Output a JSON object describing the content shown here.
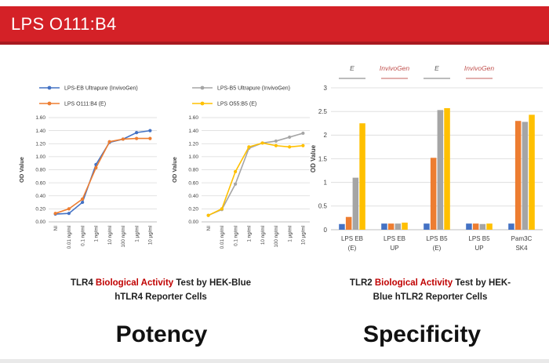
{
  "header": {
    "title": "LPS O111:B4"
  },
  "section_labels": {
    "left": "Potency",
    "right": "Specificity"
  },
  "captions": {
    "left": {
      "line1_pre": "TLR4 ",
      "line1_red": "Biological Activity",
      "line1_post": " Test by HEK-Blue",
      "line2": "hTLR4 Reporter Cells"
    },
    "right": {
      "line1_pre": "TLR2 ",
      "line1_red": "Biological Activity",
      "line1_post": " Test by HEK-",
      "line2": "Blue hTLR2 Reporter Cells"
    }
  },
  "colors": {
    "header_bg": "#d42127",
    "header_border": "#a81a20",
    "caption_red": "#c00000",
    "grid": "#d9d9d9",
    "axis": "#bfbfbf",
    "tick_text": "#404040"
  },
  "chart_data": [
    {
      "type": "line",
      "name": "tlr4-potency-line-chart-eb",
      "ylabel": "OD Value",
      "ylim": [
        0,
        1.6
      ],
      "ytick_step": 0.2,
      "grid": true,
      "legend_position": "top",
      "categories": [
        "NI",
        "0.01 ng/ml",
        "0.1 ng/ml",
        "1 ng/ml",
        "10 ng/ml",
        "100 ng/ml",
        "1 µg/ml",
        "10 µg/ml"
      ],
      "series": [
        {
          "name": "LPS-EB Ultrapure (InvivoGen)",
          "color": "#4472c4",
          "values": [
            0.12,
            0.13,
            0.3,
            0.88,
            1.22,
            1.27,
            1.37,
            1.4
          ]
        },
        {
          "name": "LPS O111:B4 (E)",
          "color": "#ed7d31",
          "values": [
            0.13,
            0.2,
            0.35,
            0.83,
            1.23,
            1.27,
            1.28,
            1.28
          ]
        }
      ]
    },
    {
      "type": "line",
      "name": "tlr4-potency-line-chart-b5",
      "ylabel": "OD Value",
      "ylim": [
        0,
        1.6
      ],
      "ytick_step": 0.2,
      "grid": true,
      "legend_position": "top",
      "categories": [
        "NI",
        "0.01 ng/ml",
        "0.1 ng/ml",
        "1 ng/ml",
        "10 ng/ml",
        "100 ng/ml",
        "1 µg/ml",
        "10 µg/ml"
      ],
      "series": [
        {
          "name": "LPS-B5 Ultrapure (InvivoGen)",
          "color": "#a5a5a5",
          "values": [
            0.1,
            0.19,
            0.58,
            1.13,
            1.21,
            1.24,
            1.3,
            1.36
          ]
        },
        {
          "name": "LPS O55:B5 (E)",
          "color": "#ffc000",
          "values": [
            0.1,
            0.2,
            0.77,
            1.15,
            1.21,
            1.17,
            1.15,
            1.17
          ]
        }
      ]
    },
    {
      "type": "bar",
      "name": "tlr2-specificity-bar-chart",
      "ylabel": "OD Value",
      "ylim": [
        0,
        3
      ],
      "ytick_step": 0.5,
      "grid": true,
      "categories": [
        [
          "LPS EB",
          "(E)"
        ],
        [
          "LPS EB",
          "UP"
        ],
        [
          "LPS B5",
          "(E)"
        ],
        [
          "LPS B5",
          "UP"
        ],
        [
          "Pam3C",
          "SK4"
        ]
      ],
      "series": [
        {
          "color": "#4472c4",
          "values": [
            0.12,
            0.13,
            0.13,
            0.13,
            0.13
          ]
        },
        {
          "color": "#ed7d31",
          "values": [
            0.27,
            0.13,
            1.52,
            0.13,
            2.3
          ]
        },
        {
          "color": "#a5a5a5",
          "values": [
            1.1,
            0.13,
            2.53,
            0.12,
            2.28
          ]
        },
        {
          "color": "#ffc000",
          "values": [
            2.25,
            0.15,
            2.57,
            0.13,
            2.43
          ]
        }
      ],
      "group_annotations": [
        {
          "group": 0,
          "text": "E",
          "color": "#595959",
          "line_color": "#a6a6a6"
        },
        {
          "group": 1,
          "text": "InvivoGen",
          "color": "#c0504d",
          "line_color": "#d99594"
        },
        {
          "group": 2,
          "text": "E",
          "color": "#595959",
          "line_color": "#a6a6a6"
        },
        {
          "group": 3,
          "text": "InvivoGen",
          "color": "#c0504d",
          "line_color": "#d99594"
        }
      ]
    }
  ]
}
